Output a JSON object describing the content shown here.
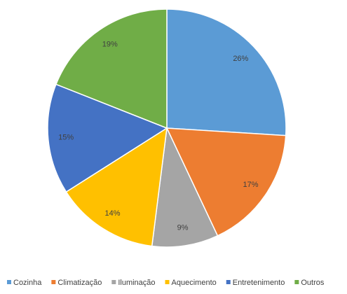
{
  "chart_data": {
    "type": "pie",
    "categories": [
      "Cozinha",
      "Climatização",
      "Iluminação",
      "Aquecimento",
      "Entretenimento",
      "Outros"
    ],
    "values": [
      26,
      17,
      9,
      14,
      15,
      19
    ],
    "value_labels": [
      "26%",
      "17%",
      "9%",
      "14%",
      "15%",
      "19%"
    ],
    "colors": [
      "#5b9bd5",
      "#ed7d31",
      "#a5a5a5",
      "#ffc000",
      "#4472c4",
      "#70ad47"
    ],
    "legend": "bottom"
  }
}
